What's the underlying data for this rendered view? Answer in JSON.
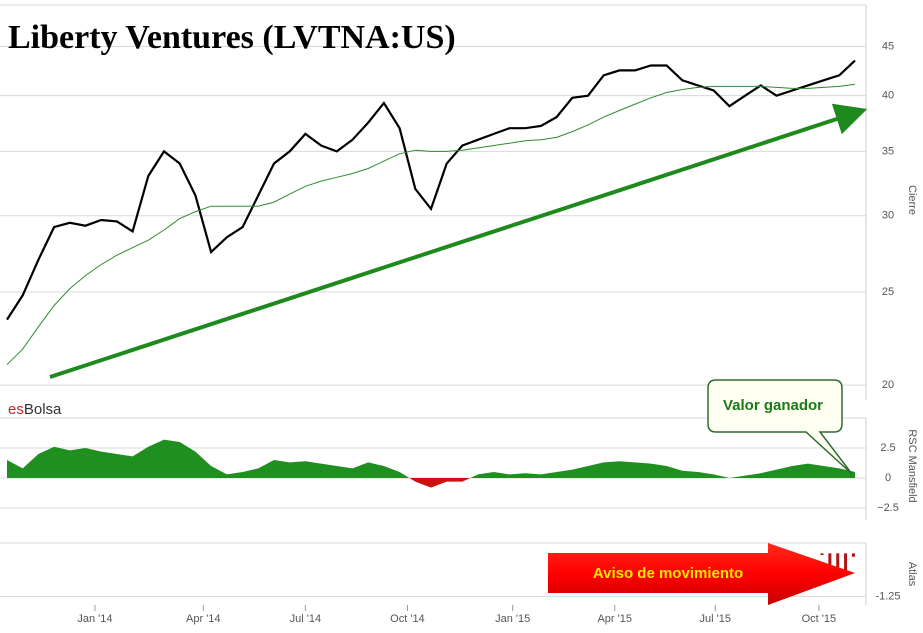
{
  "logo": {
    "es": "es",
    "bolsa": "Bolsa"
  },
  "chart_data": [
    {
      "type": "line",
      "title": "Liberty Ventures (LVTNA:US)",
      "y_label": "Cierre",
      "log_scale": true,
      "grid": true,
      "xlim": [
        0,
        54
      ],
      "ylim": [
        19.3,
        49.7
      ],
      "yticks": [
        20,
        25,
        30,
        35,
        40,
        45
      ],
      "series": [
        {
          "color": "#000000",
          "values": [
            23.4,
            24.8,
            27,
            29.2,
            29.5,
            29.3,
            29.7,
            29.6,
            28.9,
            33,
            35,
            34,
            31.5,
            27.5,
            28.5,
            29.2,
            31.5,
            34,
            35,
            36.5,
            35.5,
            35,
            36,
            37.5,
            39.3,
            37,
            32,
            30.5,
            34,
            35.5,
            36,
            36.5,
            37,
            37,
            37.2,
            38,
            39.8,
            40,
            42,
            42.5,
            42.5,
            43,
            43,
            41.5,
            41,
            40.5,
            39,
            40,
            41,
            40,
            40.5,
            41,
            41.5,
            42,
            43.5
          ]
        },
        {
          "color": "#2e8b2e",
          "values": [
            21,
            21.8,
            23,
            24.2,
            25.2,
            26,
            26.7,
            27.3,
            27.8,
            28.3,
            29,
            29.8,
            30.3,
            30.7,
            30.7,
            30.7,
            30.7,
            31,
            31.6,
            32.2,
            32.6,
            32.9,
            33.2,
            33.6,
            34.2,
            34.8,
            35.1,
            35,
            35,
            35.1,
            35.3,
            35.5,
            35.7,
            35.9,
            36,
            36.2,
            36.7,
            37.3,
            38,
            38.6,
            39.2,
            39.8,
            40.3,
            40.6,
            40.8,
            40.9,
            40.9,
            40.9,
            40.9,
            40.8,
            40.7,
            40.7,
            40.8,
            40.9,
            41.1
          ]
        }
      ]
    },
    {
      "type": "area",
      "y_label": "RSC Mansfield",
      "annotation": "Valor ganador",
      "grid": true,
      "xlim": [
        0,
        54
      ],
      "ylim": [
        -3.5,
        5
      ],
      "yticks": [
        {
          "value": 2.5,
          "label": "2.5"
        },
        0,
        {
          "value": -2.5,
          "label": "−2.5"
        }
      ],
      "color": "#1f8f1f",
      "negative_color": "#cc1111",
      "values": [
        1.5,
        0.8,
        2,
        2.6,
        2.3,
        2.5,
        2.2,
        2,
        1.8,
        2.6,
        3.2,
        3,
        2.2,
        1,
        0.3,
        0.5,
        0.8,
        1.5,
        1.3,
        1.4,
        1.2,
        1,
        0.8,
        1.3,
        1,
        0.5,
        -0.3,
        -0.8,
        -0.3,
        -0.3,
        0.3,
        0.5,
        0.3,
        0.4,
        0.3,
        0.5,
        0.7,
        1,
        1.3,
        1.4,
        1.3,
        1.2,
        1,
        0.6,
        0.5,
        0.3,
        0,
        0.2,
        0.4,
        0.7,
        1,
        1.2,
        1,
        0.8,
        0.5
      ]
    },
    {
      "type": "bar",
      "y_label": "Atlas",
      "annotation": "Aviso de movimiento",
      "grid": true,
      "xlim": [
        0,
        54
      ],
      "ylim": [
        -1.5,
        0.3
      ],
      "yticks": [
        {
          "value": -1.25,
          "label": "-1.25"
        }
      ],
      "xticks": [
        {
          "value": 5.6,
          "label": "Jan '14"
        },
        {
          "value": 12.5,
          "label": "Apr '14"
        },
        {
          "value": 19,
          "label": "Jul '14"
        },
        {
          "value": 25.5,
          "label": "Oct '14"
        },
        {
          "value": 32.2,
          "label": "Jan '15"
        },
        {
          "value": 38.7,
          "label": "Apr '15"
        },
        {
          "value": 45.1,
          "label": "Jul '15"
        },
        {
          "value": 51.7,
          "label": "Oct '15"
        }
      ],
      "color": "#b01515",
      "x": [
        51.9,
        52.4,
        52.9,
        53.4,
        53.9
      ],
      "values": [
        -0.05,
        -0.8,
        -0.7,
        -0.6,
        -0.1
      ]
    }
  ]
}
